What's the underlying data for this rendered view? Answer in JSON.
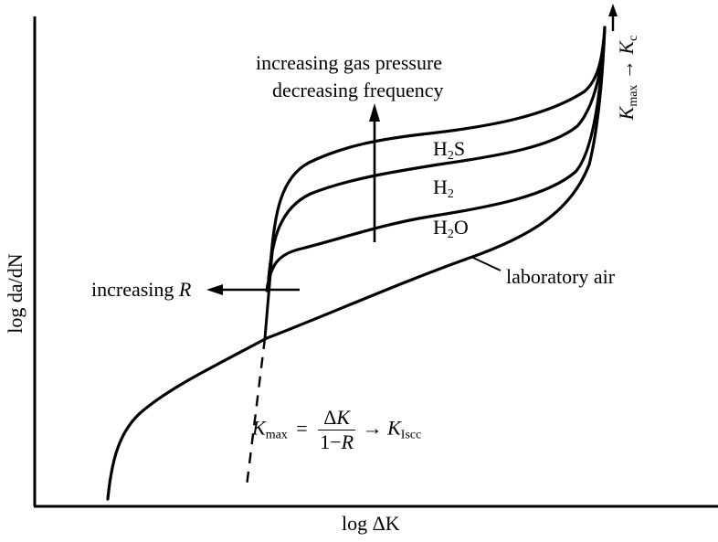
{
  "axes": {
    "x_label": "log ΔK",
    "y_label": "log da/dN"
  },
  "curves": [
    {
      "name": "H₂S",
      "label_main": "H",
      "label_sub": "2",
      "label_tail": "S"
    },
    {
      "name": "H₂",
      "label_main": "H",
      "label_sub": "2",
      "label_tail": ""
    },
    {
      "name": "H₂O",
      "label_main": "H",
      "label_sub": "2",
      "label_tail": "O"
    },
    {
      "name": "laboratory air",
      "label": "laboratory air"
    }
  ],
  "annotations": {
    "trend_line1": "increasing gas pressure",
    "trend_line2": "decreasing frequency",
    "increasing_r_text": "increasing ",
    "increasing_r_symbol": "R",
    "kc_main": "K",
    "kc_sub": "max",
    "kc_arrow": "→",
    "kc_target": "K",
    "kc_target_sub": "c",
    "formula": {
      "lhs": "K",
      "lhs_sub": "max",
      "equals": "=",
      "numerator_delta": "Δ",
      "numerator_k": "K",
      "denominator_one": "1",
      "denominator_minus": "−",
      "denominator_r": "R",
      "arrow": "→",
      "rhs": "K",
      "rhs_sub": "Iscc"
    }
  },
  "colors": {
    "ink": "#000000",
    "background": "#ffffff"
  }
}
